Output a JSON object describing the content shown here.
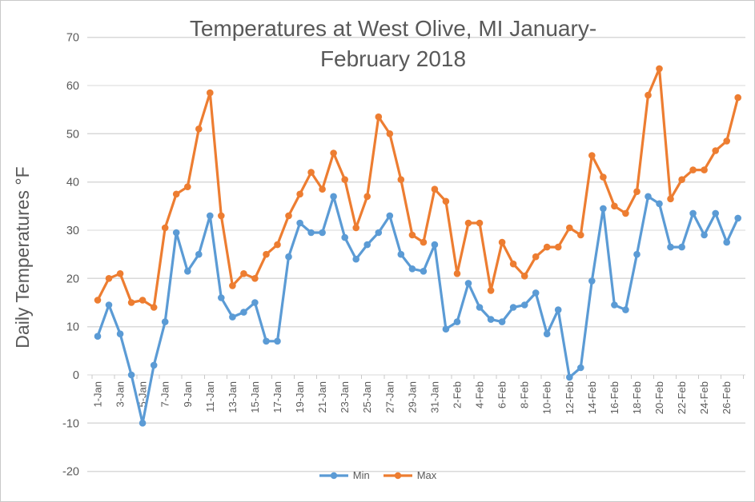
{
  "chart_data": {
    "type": "line",
    "title": "Temperatures at West Olive, MI January-February 2018",
    "title_lines": [
      "Temperatures at West Olive, MI January-",
      "February 2018"
    ],
    "ylabel": "Daily Temperatures °F",
    "xlabel": "",
    "ylim": [
      -20,
      70
    ],
    "y_ticks": [
      70,
      60,
      50,
      40,
      30,
      20,
      10,
      0,
      -10,
      -20
    ],
    "grid": "horizontal",
    "legend_position": "bottom-center",
    "marker": "circle",
    "categories": [
      "1-Jan",
      "2-Jan",
      "3-Jan",
      "4-Jan",
      "5-Jan",
      "6-Jan",
      "7-Jan",
      "8-Jan",
      "9-Jan",
      "10-Jan",
      "11-Jan",
      "12-Jan",
      "13-Jan",
      "14-Jan",
      "15-Jan",
      "16-Jan",
      "17-Jan",
      "18-Jan",
      "19-Jan",
      "20-Jan",
      "21-Jan",
      "22-Jan",
      "23-Jan",
      "24-Jan",
      "25-Jan",
      "26-Jan",
      "27-Jan",
      "28-Jan",
      "29-Jan",
      "30-Jan",
      "31-Jan",
      "1-Feb",
      "2-Feb",
      "3-Feb",
      "4-Feb",
      "5-Feb",
      "6-Feb",
      "7-Feb",
      "8-Feb",
      "9-Feb",
      "10-Feb",
      "11-Feb",
      "12-Feb",
      "13-Feb",
      "14-Feb",
      "15-Feb",
      "16-Feb",
      "17-Feb",
      "18-Feb",
      "19-Feb",
      "20-Feb",
      "21-Feb",
      "22-Feb",
      "23-Feb",
      "24-Feb",
      "25-Feb",
      "26-Feb",
      "27-Feb"
    ],
    "x_tick_labels": [
      "1-Jan",
      "3-Jan",
      "5-Jan",
      "7-Jan",
      "9-Jan",
      "11-Jan",
      "13-Jan",
      "15-Jan",
      "17-Jan",
      "19-Jan",
      "21-Jan",
      "23-Jan",
      "25-Jan",
      "27-Jan",
      "29-Jan",
      "31-Jan",
      "2-Feb",
      "4-Feb",
      "6-Feb",
      "8-Feb",
      "10-Feb",
      "12-Feb",
      "14-Feb",
      "16-Feb",
      "18-Feb",
      "20-Feb",
      "22-Feb",
      "24-Feb",
      "26-Feb"
    ],
    "series": [
      {
        "name": "Min",
        "color": "#5B9BD5",
        "values": [
          8,
          14.5,
          8.5,
          0,
          -10,
          2,
          11,
          29.5,
          21.5,
          25,
          33,
          16,
          12,
          13,
          15,
          7,
          7,
          24.5,
          31.5,
          29.5,
          29.5,
          37,
          28.5,
          24,
          27,
          29.5,
          33,
          25,
          22,
          21.5,
          27,
          9.5,
          11,
          19,
          14,
          11.5,
          11,
          14,
          14.5,
          17,
          8.5,
          13.5,
          -0.5,
          1.5,
          19.5,
          34.5,
          14.5,
          13.5,
          25,
          37,
          35.5,
          26.5,
          26.5,
          33.5,
          29,
          33.5,
          27.5,
          32.5
        ]
      },
      {
        "name": "Max",
        "color": "#ED7D31",
        "values": [
          15.5,
          20,
          21,
          15,
          15.5,
          14,
          30.5,
          37.5,
          39,
          51,
          58.5,
          33,
          18.5,
          21,
          20,
          25,
          27,
          33,
          37.5,
          42,
          38.5,
          46,
          40.5,
          30.5,
          37,
          53.5,
          50,
          40.5,
          29,
          27.5,
          38.5,
          36,
          21,
          31.5,
          31.5,
          17.5,
          27.5,
          23,
          20.5,
          24.5,
          26.5,
          26.5,
          30.5,
          29,
          45.5,
          41,
          35,
          33.5,
          38,
          58,
          63.5,
          36.5,
          40.5,
          42.5,
          42.5,
          46.5,
          48.5,
          57.5
        ]
      }
    ],
    "colors": {
      "text": "#595959",
      "gridline": "#D9D9D9",
      "tick": "#C9C9C9",
      "background": "#FFFFFF"
    }
  }
}
